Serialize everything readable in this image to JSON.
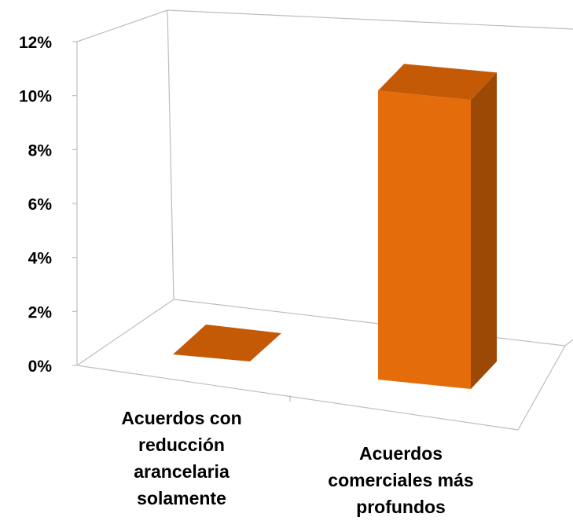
{
  "chart_data": {
    "type": "bar",
    "categories": [
      [
        "Acuerdos con",
        "reducción",
        "arancelaria",
        "solamente"
      ],
      [
        "Acuerdos",
        "comerciales más",
        "profundos"
      ]
    ],
    "values": [
      0,
      10.5
    ],
    "yticks": [
      "0%",
      "2%",
      "4%",
      "6%",
      "8%",
      "10%",
      "12%"
    ],
    "ylim": [
      0,
      12
    ],
    "unit": "%",
    "three_d": true,
    "grid": false,
    "title": "",
    "xlabel": "",
    "ylabel": ""
  },
  "colors": {
    "bar_front": "#e46c0a",
    "bar_side": "#9c4906",
    "bar_top": "#c55a06",
    "wall_line": "#bdbdbd"
  }
}
